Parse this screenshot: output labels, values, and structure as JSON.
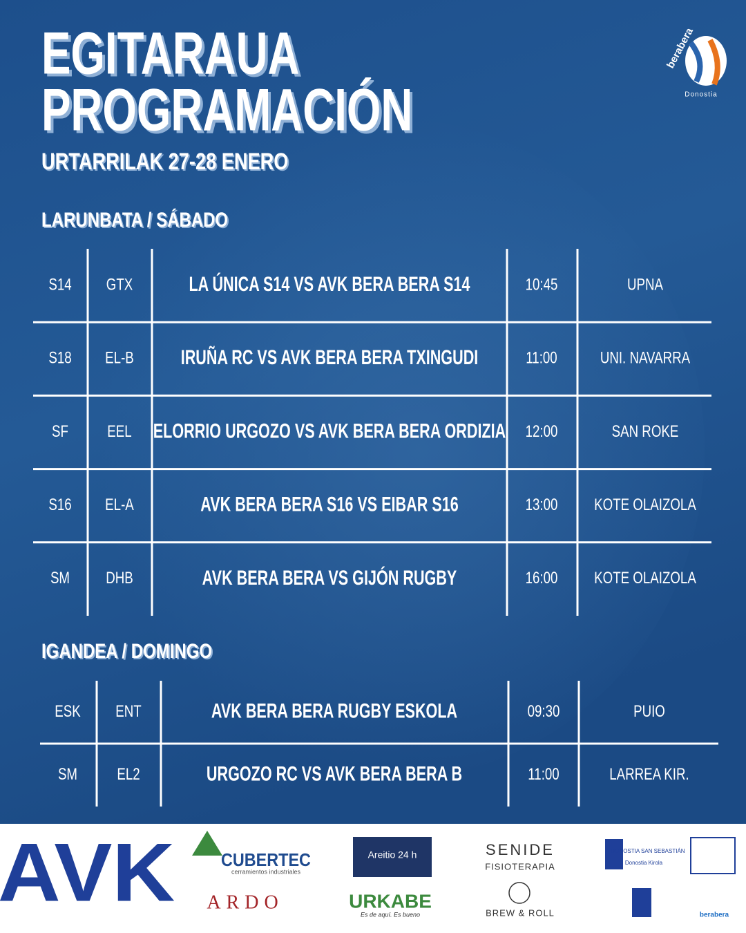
{
  "header": {
    "title_lines": [
      "EGITARAUA",
      "PROGRAMACIÓN"
    ],
    "subtitle": "URTARRILAK 27-28 ENERO",
    "logo": {
      "name": "berabera",
      "place": "Donostia"
    }
  },
  "days": [
    {
      "heading": "LARUNBATA / SÁBADO",
      "matches": [
        [
          "S14",
          "GTX",
          "LA ÚNICA S14 VS AVK BERA BERA S14",
          "10:45",
          "UPNA"
        ],
        [
          "S18",
          "EL-B",
          "IRUÑA RC VS AVK BERA BERA TXINGUDI",
          "11:00",
          "UNI. NAVARRA"
        ],
        [
          "SF",
          "EEL",
          "ELORRIO URGOZO VS AVK BERA BERA ORDIZIA",
          "12:00",
          "SAN ROKE"
        ],
        [
          "S16",
          "EL-A",
          "AVK BERA BERA S16 VS EIBAR S16",
          "13:00",
          "KOTE OLAIZOLA"
        ],
        [
          "SM",
          "DHB",
          "AVK BERA BERA VS GIJÓN RUGBY",
          "16:00",
          "KOTE OLAIZOLA"
        ]
      ]
    },
    {
      "heading": "IGANDEA / DOMINGO",
      "matches": [
        [
          "ESK",
          "ENT",
          "AVK BERA BERA RUGBY ESKOLA",
          "09:30",
          "PUIO"
        ],
        [
          "SM",
          "EL2",
          "URGOZO RC VS AVK BERA BERA B",
          "11:00",
          "LARREA KIR."
        ]
      ]
    }
  ],
  "sponsors": [
    "AVK",
    "CUBERTEC",
    "cerramientos industriales",
    "ARDO",
    "Areitio 24 h",
    "URKABE",
    "Es de aquí. Es bueno",
    "SENIDE",
    "FISIOTERAPIA",
    "BREW & ROLL",
    "DONOSTIA SAN SEBASTIÁN",
    "Donostia Kirola",
    "berabera"
  ]
}
